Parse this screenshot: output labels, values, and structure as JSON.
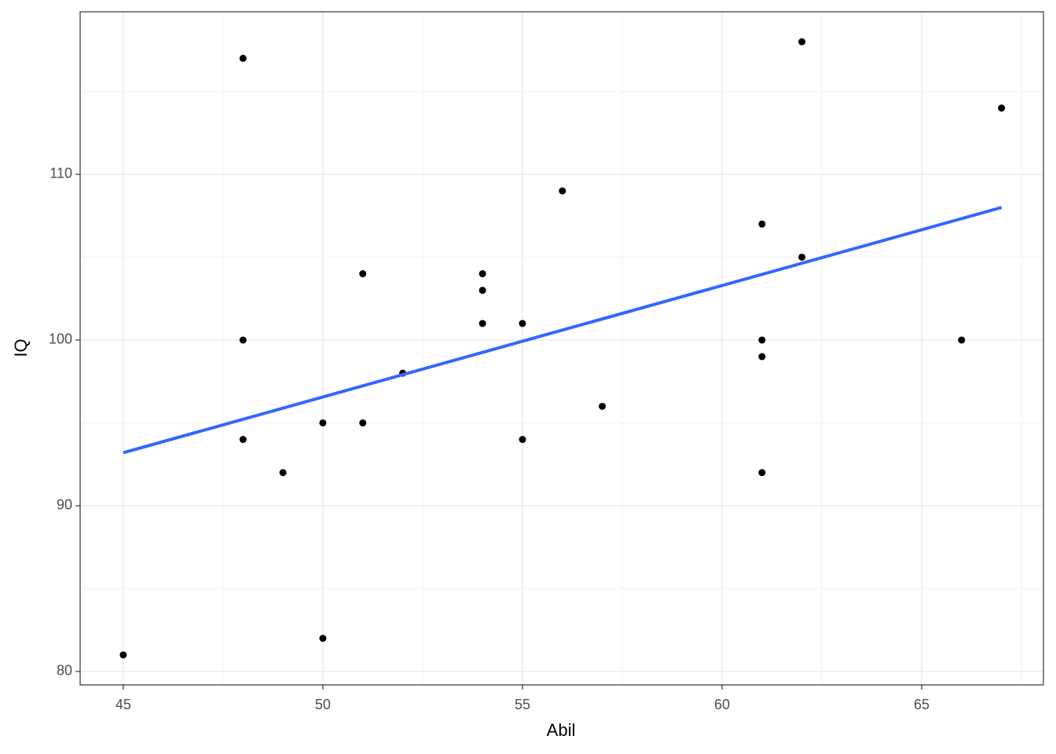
{
  "chart_data": {
    "type": "scatter",
    "x_label": "Abil",
    "y_label": "IQ",
    "x": [
      45,
      48,
      48,
      48,
      49,
      50,
      50,
      51,
      51,
      52,
      54,
      54,
      54,
      55,
      55,
      56,
      57,
      61,
      61,
      61,
      61,
      62,
      62,
      66,
      67
    ],
    "y": [
      81,
      117,
      100,
      94,
      92,
      95,
      82,
      104,
      95,
      98,
      104,
      103,
      101,
      101,
      94,
      109,
      96,
      107,
      100,
      99,
      92,
      118,
      105,
      100,
      114
    ],
    "color": "#000000",
    "fit": {
      "x": [
        45,
        67
      ],
      "y": [
        93.2,
        108.0
      ],
      "color": "#3366ff"
    },
    "xlim": [
      43.92,
      68.05
    ],
    "xticks": [
      45,
      50,
      55,
      60,
      65
    ],
    "ylim": [
      79.19,
      119.81
    ],
    "yticks": [
      80,
      90,
      100,
      110
    ],
    "grid": true
  }
}
